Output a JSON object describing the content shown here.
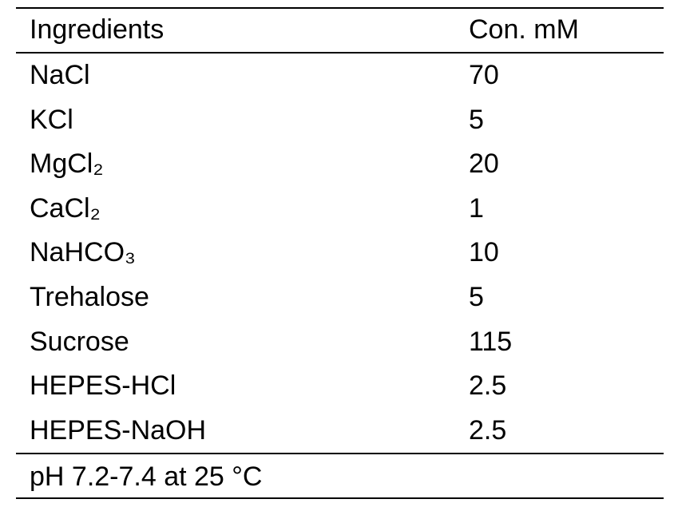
{
  "table": {
    "header": [
      "Ingredients",
      "Con. mM"
    ],
    "rows": [
      [
        "NaCl",
        "70"
      ],
      [
        "KCl",
        "5"
      ],
      [
        "MgCl₂",
        "20"
      ],
      [
        "CaCl₂",
        "1"
      ],
      [
        "NaHCO₃",
        "10"
      ],
      [
        "Trehalose",
        "5"
      ],
      [
        "Sucrose",
        "115"
      ],
      [
        "HEPES-HCl",
        "2.5"
      ],
      [
        "HEPES-NaOH",
        "2.5"
      ]
    ],
    "footer": "pH 7.2-7.4 at 25 °C"
  }
}
